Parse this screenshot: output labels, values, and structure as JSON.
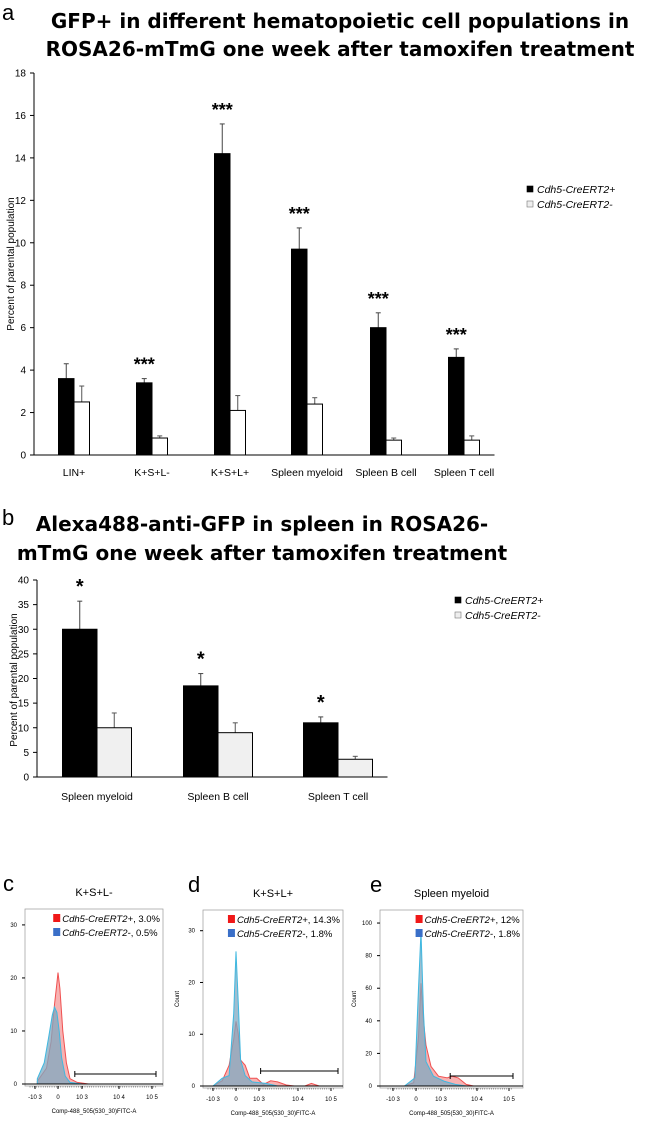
{
  "chart_data": [
    {
      "panel": "a",
      "type": "bar",
      "title": "GFP+ in different hematopoietic cell populations in ROSA26-mTmG one week after tamoxifen treatment",
      "title_lines": [
        "GFP+ in different hematopoietic cell populations in",
        "ROSA26-mTmG one week after tamoxifen treatment"
      ],
      "ylabel": "Percent of parental population",
      "ylim": [
        0,
        18
      ],
      "yticks": [
        "0",
        "2",
        "4",
        "6",
        "8",
        "10",
        "12",
        "14",
        "16",
        "18"
      ],
      "categories": [
        "LIN+",
        "K+S+L-",
        "K+S+L+",
        "Spleen myeloid",
        "Spleen B cell",
        "Spleen T cell"
      ],
      "series": [
        {
          "name": "Cdh5-CreERT2+",
          "color": "#000000",
          "values": [
            3.6,
            3.4,
            14.2,
            9.7,
            6.0,
            4.6
          ],
          "errors": [
            0.7,
            0.2,
            1.4,
            1.0,
            0.7,
            0.4
          ]
        },
        {
          "name": "Cdh5-CreERT2-",
          "color": "#ffffff",
          "values": [
            2.5,
            0.8,
            2.1,
            2.4,
            0.7,
            0.7
          ],
          "errors": [
            0.75,
            0.1,
            0.7,
            0.3,
            0.1,
            0.2
          ]
        }
      ],
      "significance": [
        "",
        "***",
        "***",
        "***",
        "***",
        "***"
      ],
      "legend": "right",
      "grid": false
    },
    {
      "panel": "b",
      "type": "bar",
      "title": "Alexa488-anti-GFP in spleen in ROSA26-mTmG one week after tamoxifen treatment",
      "title_lines": [
        "Alexa488-anti-GFP in spleen in ROSA26-",
        "mTmG one week after tamoxifen treatment"
      ],
      "ylabel": "Percent of parental population",
      "ylim": [
        0,
        40
      ],
      "yticks": [
        "0",
        "5",
        "10",
        "15",
        "20",
        "25",
        "30",
        "35",
        "40"
      ],
      "categories": [
        "Spleen myeloid",
        "Spleen B cell",
        "Spleen T cell"
      ],
      "series": [
        {
          "name": "Cdh5-CreERT2+",
          "color": "#000000",
          "values": [
            30,
            18.5,
            11
          ],
          "errors": [
            5.7,
            2.5,
            1.2
          ]
        },
        {
          "name": "Cdh5-CreERT2-",
          "color": "#f0f0f0",
          "values": [
            10,
            9,
            3.6
          ],
          "errors": [
            3,
            2,
            0.6
          ]
        }
      ],
      "significance": [
        "*",
        "*",
        "*"
      ],
      "legend": "right",
      "grid": false
    },
    {
      "panel": "c",
      "type": "area",
      "title": "K+S+L-",
      "xlabel": "Comp-488_505(530_30)FITC-A",
      "ylabel": "",
      "ylim": [
        0,
        33
      ],
      "yticks": [
        "0",
        "10",
        "20",
        "30"
      ],
      "xticks": [
        "-10 3",
        "0",
        "10 3",
        "10 4",
        "10 5"
      ],
      "gate": [
        700,
        100000
      ],
      "series": [
        {
          "name": "Cdh5-CreERT2+, 3.0%",
          "color": "#f05050",
          "points": [
            [
              -1500,
              0
            ],
            [
              -900,
              0.5
            ],
            [
              -500,
              3
            ],
            [
              -300,
              8
            ],
            [
              -150,
              15
            ],
            [
              -50,
              19
            ],
            [
              0,
              21
            ],
            [
              80,
              18
            ],
            [
              200,
              10
            ],
            [
              350,
              4
            ],
            [
              500,
              1
            ],
            [
              800,
              0.3
            ],
            [
              1500,
              0
            ],
            [
              100000,
              0
            ]
          ]
        },
        {
          "name": "Cdh5-CreERT2-, 0.5%",
          "color": "#3fb8e0",
          "points": [
            [
              -1500,
              0
            ],
            [
              -900,
              1
            ],
            [
              -600,
              4
            ],
            [
              -400,
              9
            ],
            [
              -250,
              13
            ],
            [
              -150,
              14.5
            ],
            [
              -50,
              13.5
            ],
            [
              50,
              10
            ],
            [
              150,
              5
            ],
            [
              300,
              1.5
            ],
            [
              500,
              0.3
            ],
            [
              1000,
              0
            ],
            [
              100000,
              0
            ]
          ]
        }
      ]
    },
    {
      "panel": "d",
      "type": "area",
      "title": "K+S+L+",
      "xlabel": "Comp-488_505(530_30)FITC-A",
      "ylabel": "Count",
      "ylim": [
        0,
        34
      ],
      "yticks": [
        "0",
        "10",
        "20",
        "30"
      ],
      "xticks": [
        "-10 3",
        "0",
        "10 3",
        "10 4",
        "10 5"
      ],
      "gate": [
        1100,
        110000
      ],
      "series": [
        {
          "name": "Cdh5-CreERT2+, 14.3%",
          "color": "#f05050",
          "points": [
            [
              -1000,
              0
            ],
            [
              -600,
              1
            ],
            [
              -300,
              4
            ],
            [
              -100,
              9
            ],
            [
              0,
              12.5
            ],
            [
              100,
              10
            ],
            [
              200,
              5
            ],
            [
              400,
              4
            ],
            [
              600,
              1.5
            ],
            [
              900,
              1.5
            ],
            [
              1300,
              0.3
            ],
            [
              2000,
              1
            ],
            [
              3000,
              0.8
            ],
            [
              5000,
              0.2
            ],
            [
              8000,
              0
            ],
            [
              15000,
              0
            ],
            [
              22000,
              0.5
            ],
            [
              35000,
              0
            ],
            [
              100000,
              0
            ]
          ]
        },
        {
          "name": "Cdh5-CreERT2-, 1.8%",
          "color": "#3fb8e0",
          "points": [
            [
              -1000,
              0
            ],
            [
              -600,
              1.5
            ],
            [
              -300,
              2
            ],
            [
              -100,
              14
            ],
            [
              0,
              26
            ],
            [
              100,
              16
            ],
            [
              200,
              5
            ],
            [
              400,
              2
            ],
            [
              700,
              0.8
            ],
            [
              1500,
              0.5
            ],
            [
              3000,
              0
            ],
            [
              100000,
              0
            ]
          ]
        }
      ]
    },
    {
      "panel": "e",
      "type": "area",
      "title": "Spleen myeloid",
      "xlabel": "Comp-488_505(530_30)FITC-A",
      "ylabel": "Count",
      "ylim": [
        0,
        108
      ],
      "yticks": [
        "0",
        "20",
        "40",
        "60",
        "80",
        "100"
      ],
      "xticks": [
        "-10 3",
        "0",
        "10 3",
        "10 4",
        "10 5"
      ],
      "gate": [
        1800,
        100000
      ],
      "series": [
        {
          "name": "Cdh5-CreERT2+, 12%",
          "color": "#f05050",
          "points": [
            [
              -500,
              0
            ],
            [
              -100,
              2
            ],
            [
              100,
              30
            ],
            [
              200,
              63
            ],
            [
              300,
              40
            ],
            [
              400,
              25
            ],
            [
              600,
              12
            ],
            [
              900,
              6
            ],
            [
              1500,
              5
            ],
            [
              2000,
              6
            ],
            [
              3000,
              5
            ],
            [
              5000,
              1
            ],
            [
              8000,
              0
            ],
            [
              100000,
              0
            ]
          ]
        },
        {
          "name": "Cdh5-CreERT2-, 1.8%",
          "color": "#3fb8e0",
          "points": [
            [
              -500,
              0
            ],
            [
              -50,
              5
            ],
            [
              100,
              60
            ],
            [
              200,
              95
            ],
            [
              300,
              45
            ],
            [
              400,
              15
            ],
            [
              700,
              6
            ],
            [
              1200,
              3
            ],
            [
              2500,
              1
            ],
            [
              5000,
              0
            ],
            [
              100000,
              0
            ]
          ]
        }
      ]
    }
  ]
}
